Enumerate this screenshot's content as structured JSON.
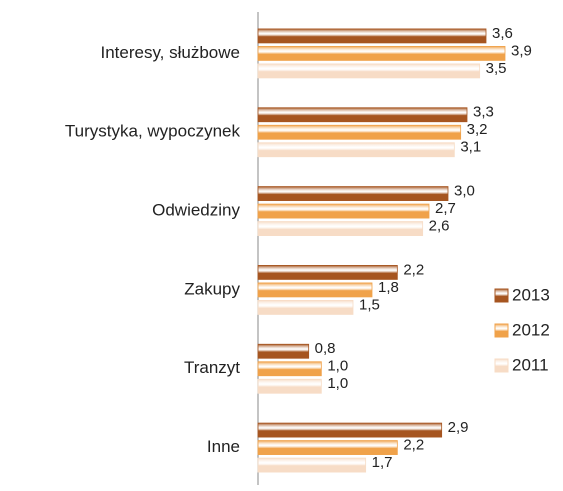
{
  "chart_data": {
    "type": "hbar",
    "categories": [
      "Interesy, służbowe",
      "Turystyka, wypoczynek",
      "Odwiedziny",
      "Zakupy",
      "Tranzyt",
      "Inne"
    ],
    "series": [
      {
        "name": "2013",
        "color": "#a65520",
        "values": [
          3.6,
          3.3,
          3.0,
          2.2,
          0.8,
          2.9
        ],
        "value_labels": [
          "3,6",
          "3,3",
          "3,0",
          "2,2",
          "0,8",
          "2,9"
        ]
      },
      {
        "name": "2012",
        "color": "#f0a24a",
        "values": [
          3.9,
          3.2,
          2.7,
          1.8,
          1.0,
          2.2
        ],
        "value_labels": [
          "3,9",
          "3,2",
          "2,7",
          "1,8",
          "1,0",
          "2,2"
        ]
      },
      {
        "name": "2011",
        "color": "#f7dcc6",
        "values": [
          3.5,
          3.1,
          2.6,
          1.5,
          1.0,
          1.7
        ],
        "value_labels": [
          "3,5",
          "3,1",
          "2,6",
          "1,5",
          "1,0",
          "1,7"
        ]
      }
    ],
    "xlim": [
      0,
      4.5
    ],
    "legend": "right"
  }
}
